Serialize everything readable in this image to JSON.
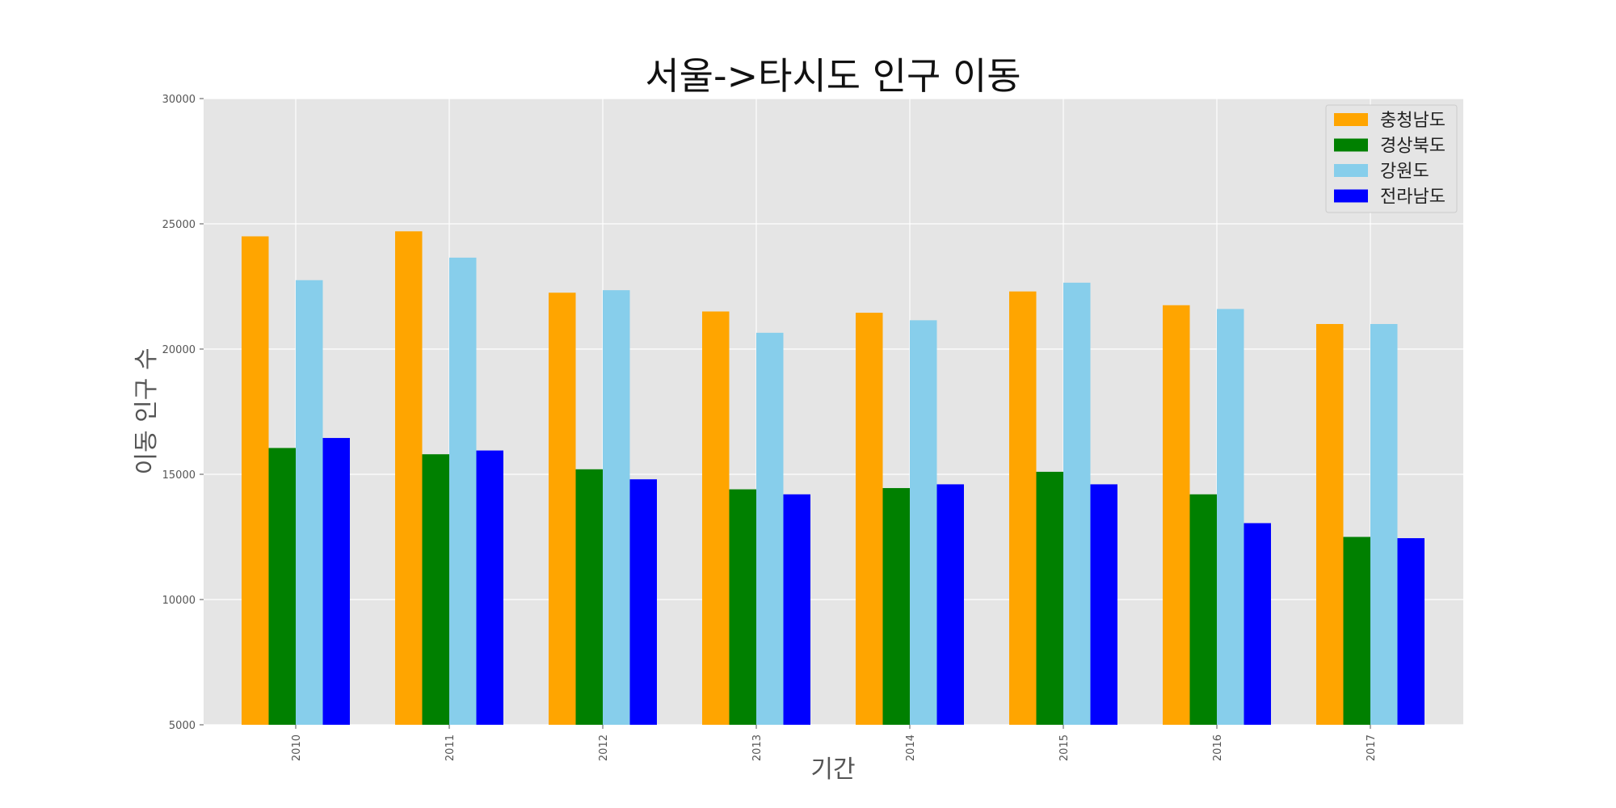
{
  "chart_data": {
    "type": "bar",
    "title": "서울->타시도 인구 이동",
    "xlabel": "기간",
    "ylabel": "이동 인구 수",
    "categories": [
      "2010",
      "2011",
      "2012",
      "2013",
      "2014",
      "2015",
      "2016",
      "2017"
    ],
    "series": [
      {
        "name": "충청남도",
        "color": "#FFA500",
        "values": [
          24500,
          24700,
          22250,
          21500,
          21450,
          22300,
          21750,
          21000
        ]
      },
      {
        "name": "경상북도",
        "color": "#008000",
        "values": [
          16050,
          15800,
          15200,
          14400,
          14450,
          15100,
          14200,
          12500
        ]
      },
      {
        "name": "강원도",
        "color": "#87CEEB",
        "values": [
          22750,
          23650,
          22350,
          20650,
          21150,
          22650,
          21600,
          21000
        ]
      },
      {
        "name": "전라남도",
        "color": "#0000FF",
        "values": [
          16450,
          15950,
          14800,
          14200,
          14600,
          14600,
          13050,
          12450
        ]
      }
    ],
    "ylim": [
      5000,
      30000
    ],
    "yticks": [
      "5000",
      "10000",
      "15000",
      "20000",
      "25000",
      "30000"
    ],
    "grid": true,
    "legend_position": "top-right",
    "background": "#E5E5E5"
  }
}
